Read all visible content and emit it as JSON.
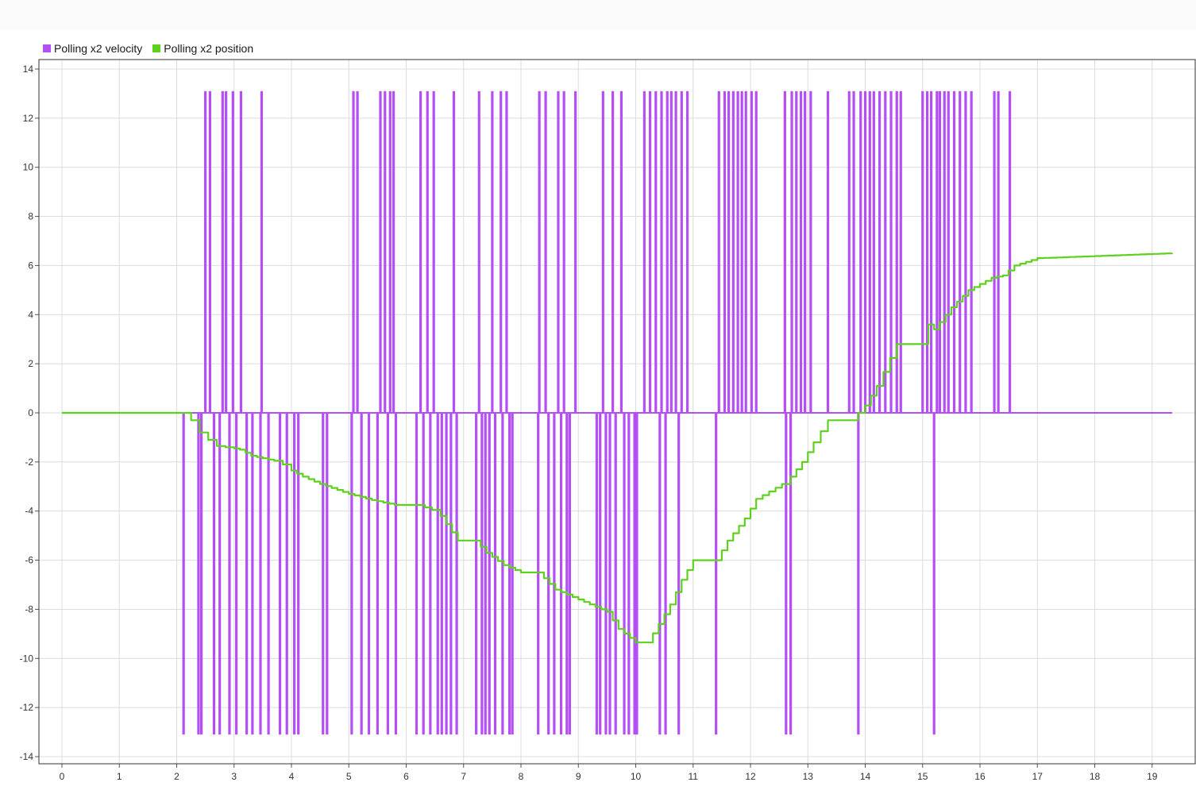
{
  "chart_data": {
    "type": "line",
    "title": "",
    "xlabel": "",
    "ylabel": "",
    "xlim": [
      -0.4,
      19.9
    ],
    "ylim": [
      -14.3,
      14.3
    ],
    "xticks": [
      0,
      1,
      2,
      3,
      4,
      5,
      6,
      7,
      8,
      9,
      10,
      11,
      12,
      13,
      14,
      15,
      16,
      17,
      18,
      19
    ],
    "yticks": [
      14,
      12,
      10,
      8,
      6,
      4,
      2,
      0,
      -2,
      -4,
      -6,
      -8,
      -10,
      -12,
      -14
    ],
    "grid": true,
    "legend_position": "top-left",
    "series": [
      {
        "name": "Polling x2 velocity",
        "color": "#b44ef5",
        "pulses": [
          [
            2.12,
            -13.1
          ],
          [
            2.38,
            -13.1
          ],
          [
            2.43,
            -13.1
          ],
          [
            2.5,
            13.1
          ],
          [
            2.58,
            13.1
          ],
          [
            2.65,
            -13.1
          ],
          [
            2.75,
            -13.1
          ],
          [
            2.8,
            13.1
          ],
          [
            2.86,
            13.1
          ],
          [
            2.92,
            -13.1
          ],
          [
            2.98,
            13.1
          ],
          [
            3.04,
            -13.1
          ],
          [
            3.12,
            13.1
          ],
          [
            3.22,
            -13.1
          ],
          [
            3.32,
            -13.1
          ],
          [
            3.48,
            13.1
          ],
          [
            3.46,
            -13.1
          ],
          [
            3.6,
            -13.1
          ],
          [
            3.8,
            -13.1
          ],
          [
            3.92,
            -13.1
          ],
          [
            4.05,
            -13.1
          ],
          [
            4.12,
            -13.1
          ],
          [
            4.55,
            -13.1
          ],
          [
            4.62,
            -13.1
          ],
          [
            5.05,
            -13.1
          ],
          [
            5.08,
            13.1
          ],
          [
            5.15,
            13.1
          ],
          [
            5.22,
            -13.1
          ],
          [
            5.35,
            -13.1
          ],
          [
            5.5,
            -13.1
          ],
          [
            5.55,
            13.1
          ],
          [
            5.63,
            13.1
          ],
          [
            5.68,
            -13.1
          ],
          [
            5.72,
            13.1
          ],
          [
            5.78,
            13.1
          ],
          [
            5.82,
            -13.1
          ],
          [
            6.18,
            -13.1
          ],
          [
            6.25,
            13.1
          ],
          [
            6.3,
            -13.1
          ],
          [
            6.37,
            13.1
          ],
          [
            6.42,
            -13.1
          ],
          [
            6.48,
            13.1
          ],
          [
            6.55,
            -13.1
          ],
          [
            6.62,
            -13.1
          ],
          [
            6.7,
            -13.1
          ],
          [
            6.78,
            -13.1
          ],
          [
            6.83,
            13.1
          ],
          [
            6.88,
            -13.1
          ],
          [
            7.22,
            -13.1
          ],
          [
            7.27,
            13.1
          ],
          [
            7.32,
            -13.1
          ],
          [
            7.38,
            -13.1
          ],
          [
            7.45,
            -13.1
          ],
          [
            7.5,
            13.1
          ],
          [
            7.55,
            -13.1
          ],
          [
            7.65,
            13.1
          ],
          [
            7.68,
            -13.1
          ],
          [
            7.75,
            13.1
          ],
          [
            7.8,
            -13.1
          ],
          [
            7.85,
            -13.1
          ],
          [
            8.3,
            -13.1
          ],
          [
            8.32,
            13.1
          ],
          [
            8.43,
            13.1
          ],
          [
            8.48,
            -13.1
          ],
          [
            8.58,
            -13.1
          ],
          [
            8.65,
            13.1
          ],
          [
            8.7,
            -13.1
          ],
          [
            8.75,
            13.1
          ],
          [
            8.8,
            -13.1
          ],
          [
            8.85,
            -13.1
          ],
          [
            8.95,
            13.1
          ],
          [
            9.32,
            -13.1
          ],
          [
            9.38,
            -13.1
          ],
          [
            9.43,
            13.1
          ],
          [
            9.48,
            -13.1
          ],
          [
            9.55,
            -13.1
          ],
          [
            9.6,
            13.1
          ],
          [
            9.65,
            -13.1
          ],
          [
            9.75,
            13.1
          ],
          [
            9.8,
            -13.1
          ],
          [
            9.88,
            -13.1
          ],
          [
            9.98,
            -13.1
          ],
          [
            10.02,
            -13.1
          ],
          [
            10.15,
            13.1
          ],
          [
            10.25,
            13.1
          ],
          [
            10.35,
            13.1
          ],
          [
            10.42,
            -13.1
          ],
          [
            10.45,
            13.1
          ],
          [
            10.52,
            -13.1
          ],
          [
            10.55,
            13.1
          ],
          [
            10.62,
            13.1
          ],
          [
            10.7,
            13.1
          ],
          [
            10.75,
            -13.1
          ],
          [
            10.8,
            13.1
          ],
          [
            10.9,
            13.1
          ],
          [
            11.4,
            -13.1
          ],
          [
            11.45,
            13.1
          ],
          [
            11.55,
            13.1
          ],
          [
            11.62,
            13.1
          ],
          [
            11.7,
            13.1
          ],
          [
            11.78,
            13.1
          ],
          [
            11.85,
            13.1
          ],
          [
            11.92,
            13.1
          ],
          [
            12.02,
            13.1
          ],
          [
            12.1,
            13.1
          ],
          [
            12.6,
            13.1
          ],
          [
            12.62,
            -13.1
          ],
          [
            12.7,
            -13.1
          ],
          [
            12.72,
            13.1
          ],
          [
            12.8,
            13.1
          ],
          [
            12.88,
            13.1
          ],
          [
            12.95,
            13.1
          ],
          [
            13.05,
            13.1
          ],
          [
            13.35,
            13.1
          ],
          [
            13.72,
            13.1
          ],
          [
            13.8,
            13.1
          ],
          [
            13.88,
            -13.1
          ],
          [
            13.92,
            13.1
          ],
          [
            14.0,
            13.1
          ],
          [
            14.08,
            13.1
          ],
          [
            14.15,
            13.1
          ],
          [
            14.25,
            13.1
          ],
          [
            14.35,
            13.1
          ],
          [
            14.45,
            13.1
          ],
          [
            14.55,
            13.1
          ],
          [
            14.62,
            13.1
          ],
          [
            15.0,
            13.1
          ],
          [
            15.08,
            13.1
          ],
          [
            15.15,
            13.1
          ],
          [
            15.2,
            -13.1
          ],
          [
            15.25,
            13.1
          ],
          [
            15.3,
            13.1
          ],
          [
            15.38,
            13.1
          ],
          [
            15.45,
            13.1
          ],
          [
            15.55,
            13.1
          ],
          [
            15.65,
            13.1
          ],
          [
            15.75,
            13.1
          ],
          [
            15.85,
            13.1
          ],
          [
            16.25,
            13.1
          ],
          [
            16.32,
            13.1
          ],
          [
            16.52,
            13.1
          ]
        ]
      },
      {
        "name": "Polling x2 position",
        "color": "#5ed11f",
        "x": [
          0,
          2.1,
          2.25,
          2.4,
          2.55,
          2.7,
          2.85,
          3.0,
          3.1,
          3.3,
          3.5,
          3.7,
          3.85,
          4.0,
          4.2,
          4.5,
          5.0,
          5.4,
          5.8,
          6.2,
          6.45,
          6.6,
          6.9,
          7.2,
          7.4,
          7.7,
          8.0,
          8.3,
          8.6,
          8.8,
          9.2,
          9.5,
          9.7,
          10.0,
          10.2,
          10.4,
          10.6,
          10.8,
          11.0,
          11.4,
          11.6,
          11.9,
          12.1,
          12.55,
          12.7,
          12.9,
          13.1,
          13.35,
          13.75,
          14.0,
          14.2,
          14.55,
          15.0,
          15.1,
          15.2,
          15.5,
          15.8,
          16.2,
          16.4,
          16.6,
          17.0,
          19.35
        ],
        "y": [
          0,
          0,
          -0.3,
          -0.8,
          -1.1,
          -1.35,
          -1.4,
          -1.45,
          -1.5,
          -1.75,
          -1.85,
          -1.95,
          -2.1,
          -2.35,
          -2.6,
          -2.9,
          -3.3,
          -3.55,
          -3.75,
          -3.75,
          -3.95,
          -4.2,
          -5.2,
          -5.2,
          -5.7,
          -6.2,
          -6.5,
          -6.5,
          -7.2,
          -7.4,
          -7.8,
          -8.1,
          -8.8,
          -9.35,
          -9.35,
          -8.6,
          -7.8,
          -6.8,
          -6.0,
          -6.0,
          -5.2,
          -4.3,
          -3.5,
          -2.9,
          -2.6,
          -2.0,
          -1.2,
          -0.3,
          -0.3,
          0.3,
          1.1,
          2.8,
          2.8,
          3.6,
          3.4,
          4.3,
          5.0,
          5.5,
          5.6,
          6.0,
          6.3,
          6.5
        ]
      }
    ]
  },
  "legend": {
    "items": [
      {
        "label": "Polling x2 velocity",
        "color": "#b44ef5"
      },
      {
        "label": "Polling x2 position",
        "color": "#5ed11f"
      }
    ]
  }
}
